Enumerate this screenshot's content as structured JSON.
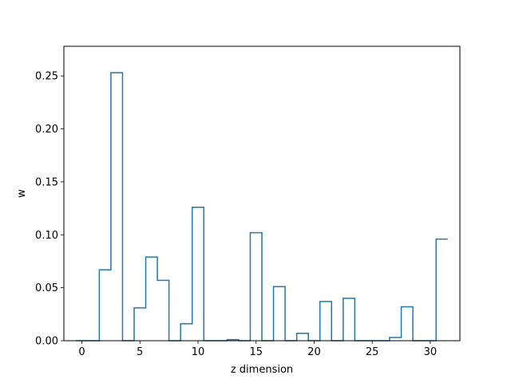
{
  "chart_data": {
    "type": "step",
    "title": "",
    "xlabel": "z dimension",
    "ylabel": "w",
    "xlim": [
      -1.55,
      32.55
    ],
    "ylim": [
      0.0,
      0.278
    ],
    "grid": false,
    "legend": "none",
    "x_ticks": [
      0,
      5,
      10,
      15,
      20,
      25,
      30
    ],
    "x_tick_labels": [
      "0",
      "5",
      "10",
      "15",
      "20",
      "25",
      "30"
    ],
    "y_ticks": [
      0.0,
      0.05,
      0.1,
      0.15,
      0.2,
      0.25
    ],
    "y_tick_labels": [
      "0.00",
      "0.05",
      "0.10",
      "0.15",
      "0.20",
      "0.25"
    ],
    "line_color": "#1f77b4",
    "x": [
      0,
      1,
      2,
      3,
      4,
      5,
      6,
      7,
      8,
      9,
      10,
      11,
      12,
      13,
      14,
      15,
      16,
      17,
      18,
      19,
      20,
      21,
      22,
      23,
      24,
      25,
      26,
      27,
      28,
      29,
      30,
      31
    ],
    "values": [
      0.0,
      0.0,
      0.067,
      0.253,
      0.0,
      0.031,
      0.079,
      0.057,
      0.0,
      0.016,
      0.126,
      0.0,
      0.0,
      0.001,
      0.0,
      0.102,
      0.0,
      0.051,
      0.0,
      0.007,
      0.0,
      0.037,
      0.0,
      0.04,
      0.0,
      0.0,
      0.0,
      0.003,
      0.032,
      0.0,
      0.0,
      0.096
    ]
  }
}
